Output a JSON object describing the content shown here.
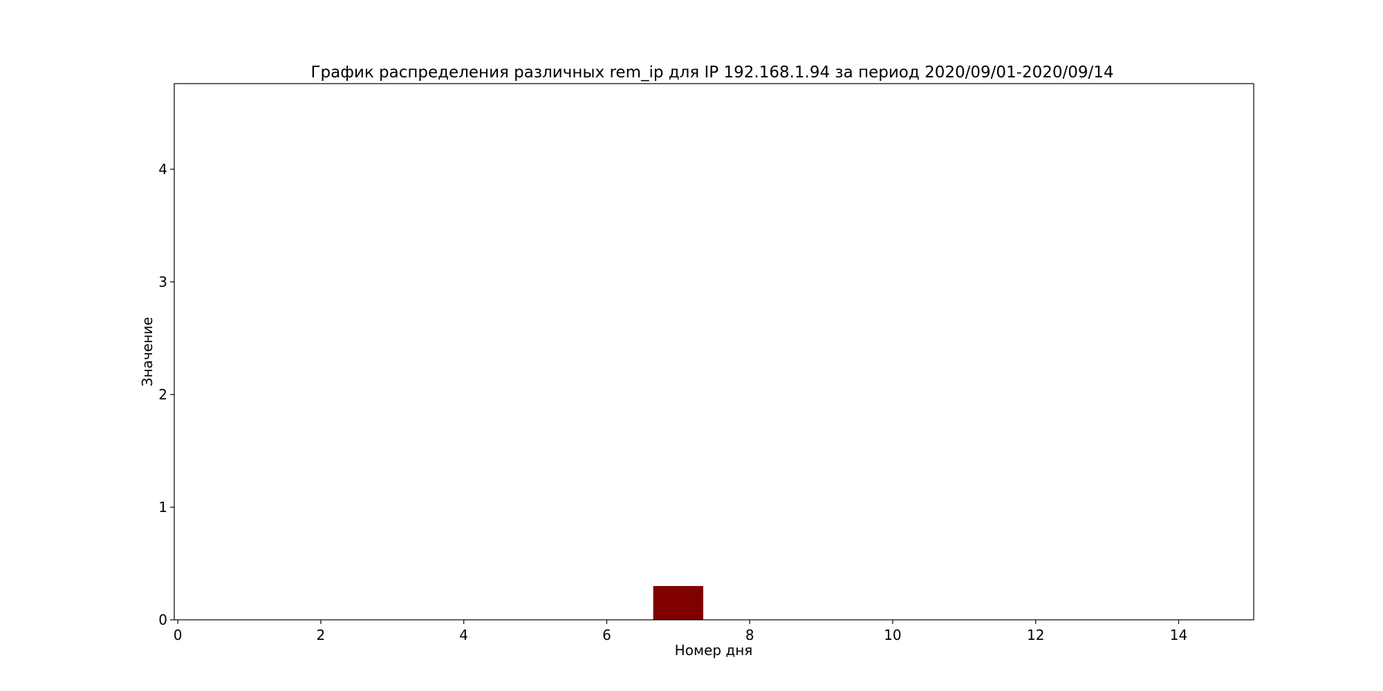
{
  "chart_data": {
    "type": "bar",
    "title": "График распределения различных rem_ip для IP 192.168.1.94 за период 2020/09/01-2020/09/14",
    "xlabel": "Номер дня",
    "ylabel": "Значение",
    "xlim": [
      -0.05,
      15.05
    ],
    "ylim": [
      0,
      4.76
    ],
    "xticks": [
      0,
      2,
      4,
      6,
      8,
      10,
      12,
      14
    ],
    "yticks": [
      0,
      1,
      2,
      3,
      4
    ],
    "bar_width": 0.7,
    "bar_color": "#800000",
    "grid": false,
    "bars": [
      {
        "x": 7,
        "value": 0.3
      }
    ]
  }
}
